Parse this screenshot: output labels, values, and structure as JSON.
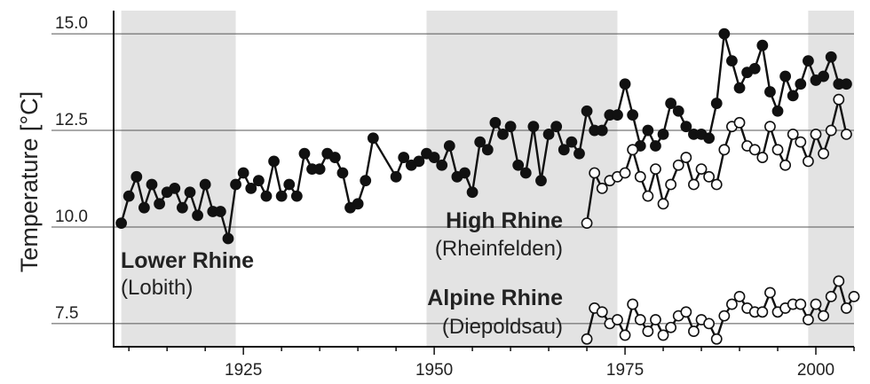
{
  "chart_data": {
    "type": "line",
    "title": "",
    "xlabel": "",
    "ylabel": "Temperature [°C]",
    "xlim": [
      1908,
      2005
    ],
    "ylim": [
      6.9,
      15.6
    ],
    "x_ticks": [
      1925,
      1950,
      1975,
      2000
    ],
    "y_ticks": [
      15.0,
      12.5,
      10.0,
      7.5
    ],
    "y_tick_labels": [
      "15.0",
      "12.5",
      "10.0",
      "7.5"
    ],
    "grid": "horizontal",
    "shaded_periods": [
      [
        1909,
        1924
      ],
      [
        1949,
        1974
      ],
      [
        1999,
        2005
      ]
    ],
    "series": [
      {
        "name": "Lower Rhine",
        "subname": "(Lobith)",
        "marker": "filled",
        "x": [
          1909,
          1910,
          1911,
          1912,
          1913,
          1914,
          1915,
          1916,
          1917,
          1918,
          1919,
          1920,
          1921,
          1922,
          1923,
          1924,
          1925,
          1926,
          1927,
          1928,
          1929,
          1930,
          1931,
          1932,
          1933,
          1934,
          1935,
          1936,
          1937,
          1938,
          1939,
          1940,
          1941,
          1942,
          1945,
          1946,
          1947,
          1948,
          1949,
          1950,
          1951,
          1952,
          1953,
          1954,
          1955,
          1956,
          1957,
          1958,
          1959,
          1960,
          1961,
          1962,
          1963,
          1964,
          1965,
          1966,
          1967,
          1968,
          1969,
          1970,
          1971,
          1972,
          1973,
          1974,
          1975,
          1976,
          1977,
          1978,
          1979,
          1980,
          1981,
          1982,
          1983,
          1984,
          1985,
          1986,
          1987,
          1988,
          1989,
          1990,
          1991,
          1992,
          1993,
          1994,
          1995,
          1996,
          1997,
          1998,
          1999,
          2000,
          2001,
          2002,
          2003,
          2004
        ],
        "values": [
          10.1,
          10.8,
          11.3,
          10.5,
          11.1,
          10.6,
          10.9,
          11.0,
          10.5,
          10.9,
          10.3,
          11.1,
          10.4,
          10.4,
          9.7,
          11.1,
          11.4,
          11.0,
          11.2,
          10.8,
          11.7,
          10.8,
          11.1,
          10.8,
          11.9,
          11.5,
          11.5,
          11.9,
          11.8,
          11.4,
          10.5,
          10.6,
          11.2,
          12.3,
          11.3,
          11.8,
          11.6,
          11.7,
          11.9,
          11.8,
          11.6,
          12.1,
          11.3,
          11.4,
          10.9,
          12.2,
          12.0,
          12.7,
          12.4,
          12.6,
          11.6,
          11.4,
          12.6,
          11.2,
          12.4,
          12.6,
          12.0,
          12.2,
          11.9,
          13.0,
          12.5,
          12.5,
          12.9,
          12.9,
          13.7,
          12.9,
          12.1,
          12.5,
          12.1,
          12.4,
          13.2,
          13.0,
          12.6,
          12.4,
          12.4,
          12.3,
          13.2,
          15.0,
          14.3,
          13.6,
          14.0,
          14.1,
          14.7,
          13.5,
          13.0,
          13.9,
          13.4,
          13.7,
          14.3,
          13.8,
          13.9,
          14.4,
          13.7,
          13.7
        ]
      },
      {
        "name": "High Rhine",
        "subname": "(Rheinfelden)",
        "marker": "open",
        "x": [
          1970,
          1971,
          1972,
          1973,
          1974,
          1975,
          1976,
          1977,
          1978,
          1979,
          1980,
          1981,
          1982,
          1983,
          1984,
          1985,
          1986,
          1987,
          1988,
          1989,
          1990,
          1991,
          1992,
          1993,
          1994,
          1995,
          1996,
          1997,
          1998,
          1999,
          2000,
          2001,
          2002,
          2003,
          2004
        ],
        "values": [
          10.1,
          11.4,
          11.0,
          11.2,
          11.3,
          11.4,
          12.0,
          11.3,
          10.8,
          11.5,
          10.6,
          11.1,
          11.6,
          11.8,
          11.1,
          11.5,
          11.3,
          11.1,
          12.0,
          12.6,
          12.7,
          12.1,
          12.0,
          11.8,
          12.6,
          12.0,
          11.6,
          12.4,
          12.2,
          11.7,
          12.4,
          11.9,
          12.5,
          13.3,
          12.4
        ]
      },
      {
        "name": "Alpine Rhine",
        "subname": "(Diepoldsau)",
        "marker": "open",
        "x": [
          1970,
          1971,
          1972,
          1973,
          1974,
          1975,
          1976,
          1977,
          1978,
          1979,
          1980,
          1981,
          1982,
          1983,
          1984,
          1985,
          1986,
          1987,
          1988,
          1989,
          1990,
          1991,
          1992,
          1993,
          1994,
          1995,
          1996,
          1997,
          1998,
          1999,
          2000,
          2001,
          2002,
          2003,
          2004,
          2005
        ],
        "values": [
          7.1,
          7.9,
          7.8,
          7.5,
          7.6,
          7.2,
          8.0,
          7.6,
          7.3,
          7.6,
          7.2,
          7.4,
          7.7,
          7.8,
          7.3,
          7.6,
          7.5,
          7.1,
          7.7,
          8.0,
          8.2,
          7.9,
          7.8,
          7.8,
          8.3,
          7.8,
          7.9,
          8.0,
          8.0,
          7.6,
          8.0,
          7.7,
          8.2,
          8.6,
          7.9,
          8.2
        ]
      }
    ]
  }
}
